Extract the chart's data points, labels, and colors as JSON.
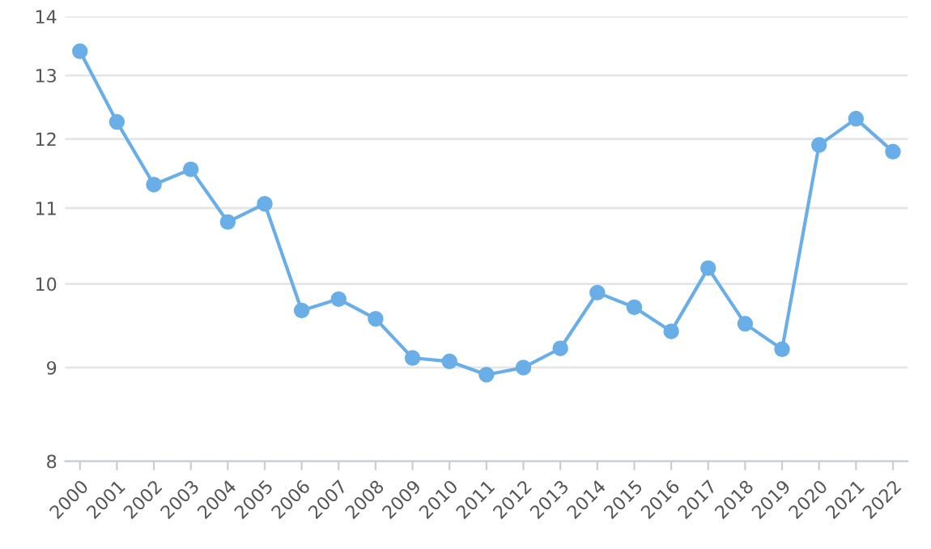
{
  "chart_data": {
    "type": "line",
    "categories": [
      "2000",
      "2001",
      "2002",
      "2003",
      "2004",
      "2005",
      "2006",
      "2007",
      "2008",
      "2009",
      "2010",
      "2011",
      "2012",
      "2013",
      "2014",
      "2015",
      "2016",
      "2017",
      "2018",
      "2019",
      "2020",
      "2021",
      "2022"
    ],
    "series": [
      {
        "color": "#6aaee8",
        "values": [
          13.4,
          12.26,
          11.33,
          11.55,
          10.81,
          11.06,
          9.67,
          9.81,
          9.57,
          9.11,
          9.07,
          8.92,
          9.0,
          9.22,
          9.89,
          9.71,
          9.42,
          10.2,
          9.51,
          9.21,
          11.91,
          12.31,
          11.81
        ]
      }
    ],
    "log": "y",
    "ylim": [
      8,
      14
    ],
    "yticks": [
      8,
      9,
      10,
      11,
      12,
      13,
      14
    ],
    "grid": "y",
    "marker": "circle",
    "line_style": "solid"
  }
}
